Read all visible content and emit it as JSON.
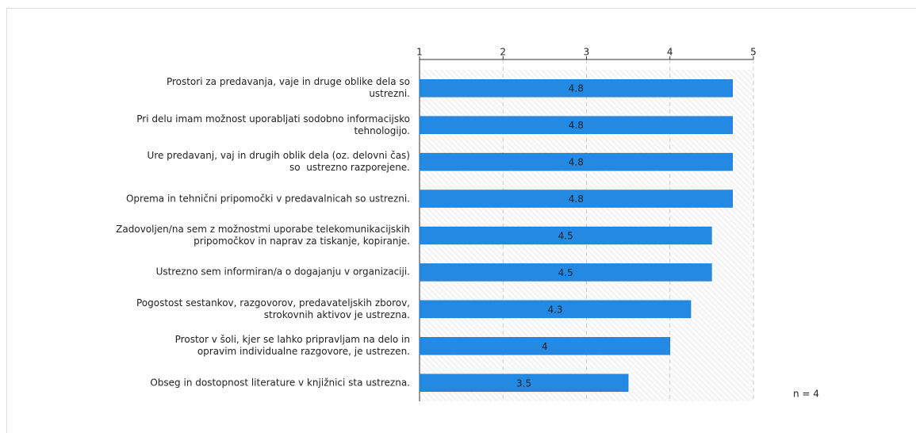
{
  "chart_data": {
    "type": "bar",
    "orientation": "horizontal",
    "categories": [
      "Prostori za predavanja, vaje in druge oblike dela so\nustrezni.",
      "Pri delu imam možnost uporabljati sodobno informacijsko\ntehnologijo.",
      "Ure predavanj, vaj in drugih oblik dela (oz. delovni čas)\nso  ustrezno razporejene.",
      "Oprema in tehnični pripomočki v predavalnicah so ustrezni.",
      "Zadovoljen/na sem z možnostmi uporabe telekomunikacijskih\npripomočkov in naprav za tiskanje, kopiranje.",
      "Ustrezno sem informiran/a o dogajanju v organizaciji.",
      "Pogostost sestankov, razgovorov, predavateljskih zborov,\nstrokovnih aktivov je ustrezna.",
      "Prostor v šoli, kjer se lahko pripravljam na delo in\nopravim individualne razgovore, je ustrezen.",
      "Obseg in dostopnost literature v knjižnici sta ustrezna."
    ],
    "values": [
      4.75,
      4.75,
      4.75,
      4.75,
      4.5,
      4.5,
      4.25,
      4,
      3.5
    ],
    "value_labels": [
      "4.8",
      "4.8",
      "4.8",
      "4.8",
      "4.5",
      "4.5",
      "4.3",
      "4",
      "3.5"
    ],
    "color": "#2389e3",
    "xlim": [
      1,
      5
    ],
    "xticks": [
      1,
      2,
      3,
      4,
      5
    ],
    "grid": true,
    "annotation": "n = 4"
  }
}
